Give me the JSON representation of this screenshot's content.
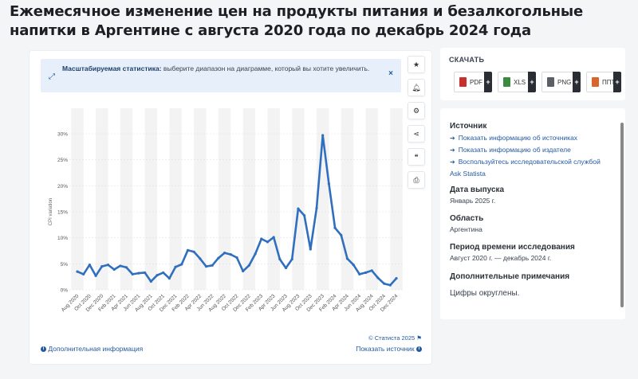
{
  "title": "Ежемесячное изменение цен на продукты питания и безалкогольные напитки в Аргентине с августа 2020 года по декабрь 2024 года",
  "banner": {
    "bold": "Масштабируемая статистика:",
    "text": " выберите диапазон на диаграмме, который вы хотите увеличить."
  },
  "toolbar": [
    "star-icon",
    "bell-icon",
    "gear-icon",
    "share-icon",
    "quote-icon",
    "print-icon"
  ],
  "chart_data": {
    "type": "line",
    "title": "",
    "xlabel": "",
    "ylabel": "CPI variation",
    "ylim": [
      0,
      30
    ],
    "yticks": [
      "0%",
      "5%",
      "10%",
      "15%",
      "20%",
      "25%",
      "30%"
    ],
    "xticks": [
      "Aug 2020",
      "Oct 2020",
      "Dec 2020",
      "Feb 2021",
      "Apr 2021",
      "Jun 2021",
      "Aug 2021",
      "Oct 2021",
      "Dec 2021",
      "Feb 2022",
      "Apr 2022",
      "Jun 2022",
      "Aug 2022",
      "Oct 2022",
      "Dec 2022",
      "Feb 2023",
      "Apr 2023",
      "Jun 2023",
      "Aug 2023",
      "Oct 2023",
      "Dec 2023",
      "Feb 2024",
      "Apr 2024",
      "Jun 2024",
      "Aug 2024",
      "Oct 2024",
      "Dec 2024"
    ],
    "grid": true,
    "series": [
      {
        "color": "#2f6fbe",
        "values": [
          3.5,
          3.0,
          4.8,
          2.7,
          4.5,
          4.8,
          3.9,
          4.6,
          4.3,
          3.0,
          3.2,
          3.3,
          1.6,
          2.8,
          3.3,
          2.2,
          4.4,
          4.9,
          7.6,
          7.3,
          6.0,
          4.5,
          4.7,
          6.1,
          7.1,
          6.8,
          6.2,
          3.6,
          4.7,
          6.9,
          9.8,
          9.2,
          10.1,
          5.9,
          4.2,
          5.9,
          15.6,
          14.3,
          7.8,
          15.7,
          29.7,
          20.4,
          11.9,
          10.5,
          6.0,
          4.8,
          3.0,
          3.3,
          3.7,
          2.3,
          1.2,
          0.9,
          2.2
        ]
      }
    ]
  },
  "footer": {
    "copyright": "© Статиста 2025",
    "more_info": "Дополнительная информация",
    "show_source": "Показать источник"
  },
  "download": {
    "title": "СКАЧАТЬ",
    "buttons": [
      {
        "label": "PDF",
        "color": "#c9302c"
      },
      {
        "label": "XLS",
        "color": "#3c8a3f"
      },
      {
        "label": "PNG",
        "color": "#5a5f66"
      },
      {
        "label": "ППТ",
        "color": "#d9652b"
      }
    ]
  },
  "meta": {
    "source_title": "Источник",
    "links": [
      "Показать информацию об источниках",
      "Показать информацию об издателе",
      "Воспользуйтесь исследовательской службой"
    ],
    "ask": "Ask Statista",
    "release_title": "Дата выпуска",
    "release_value": "Январь 2025 г.",
    "region_title": "Область",
    "region_value": "Аргентина",
    "period_title": "Период времени исследования",
    "period_value": "Август 2020 г. — декабрь 2024 г.",
    "notes_title": "Дополнительные примечания",
    "notes_value": "Цифры округлены."
  }
}
